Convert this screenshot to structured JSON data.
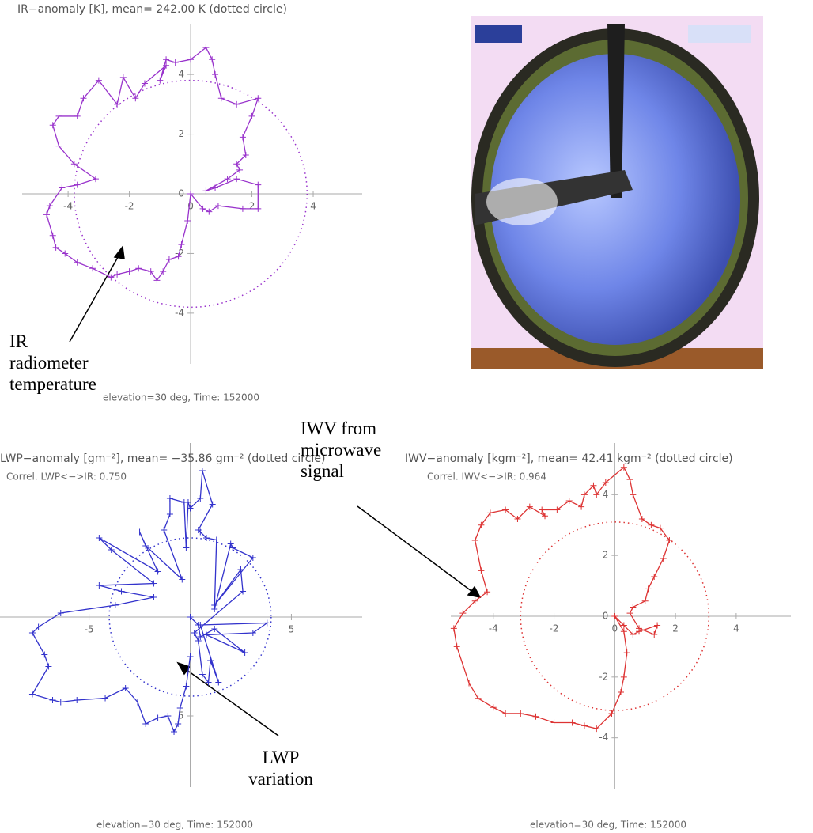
{
  "chart_data": [
    {
      "type": "line",
      "title": "IR−anomaly [K], mean= 242.00 K (dotted circle)",
      "caption": "elevation=30 deg, Time: 152000",
      "annotation": "IR radiometer temperature",
      "color": "#9933cc",
      "circle_radius": 3.8,
      "xlim": [
        -5.5,
        5.6
      ],
      "ylim": [
        -5.7,
        5.7
      ],
      "xticks": [
        -4,
        -2,
        0,
        2,
        4
      ],
      "yticks": [
        -4,
        -2,
        0,
        2,
        4
      ],
      "x": [
        0,
        0.4,
        0.6,
        0.9,
        1.7,
        2.2,
        2.2,
        1.5,
        0.8,
        0.5,
        1.2,
        1.6,
        1.5,
        1.8,
        1.7,
        2.0,
        2.2,
        1.5,
        1.0,
        0.8,
        0.7,
        0.5,
        0,
        -0.5,
        -0.8,
        -1.0,
        -0.8,
        -1.5,
        -1.8,
        -2.2,
        -2.4,
        -3.0,
        -3.5,
        -3.7,
        -4.3,
        -4.5,
        -4.3,
        -3.8,
        -3.1,
        -3.7,
        -4.2,
        -4.6,
        -4.7,
        -4.5,
        -4.4,
        -4.1,
        -3.7,
        -3.2,
        -2.6,
        -2.4,
        -2.0,
        -1.7,
        -1.3,
        -1.1,
        -0.9,
        -0.7,
        -0.4,
        -0.3,
        -0.1,
        0
      ],
      "y": [
        0,
        -0.5,
        -0.6,
        -0.4,
        -0.5,
        -0.5,
        0.3,
        0.5,
        0.2,
        0.1,
        0.5,
        0.8,
        1.0,
        1.3,
        1.9,
        2.6,
        3.2,
        3.0,
        3.2,
        4.0,
        4.5,
        4.9,
        4.5,
        4.4,
        4.5,
        3.8,
        4.3,
        3.7,
        3.2,
        3.9,
        3.0,
        3.8,
        3.2,
        2.6,
        2.6,
        2.3,
        1.6,
        1.0,
        0.5,
        0.3,
        0.2,
        -0.4,
        -0.7,
        -1.4,
        -1.8,
        -2.0,
        -2.3,
        -2.5,
        -2.8,
        -2.7,
        -2.6,
        -2.5,
        -2.6,
        -2.9,
        -2.6,
        -2.2,
        -2.1,
        -1.7,
        -0.9,
        0
      ]
    },
    {
      "type": "line",
      "title": "LWP−anomaly [gm⁻²], mean= −35.86 gm⁻² (dotted circle)",
      "note": "Correl. LWP<−>IR:  0.750",
      "caption": "elevation=30 deg, Time: 152000",
      "annotation": "LWP variation",
      "color": "#3333cc",
      "circle_radius": 4.0,
      "xlim": [
        -9.4,
        8.5
      ],
      "ylim": [
        -8.6,
        8.8
      ],
      "xticks": [
        -5,
        5
      ],
      "yticks": [
        {
          "value": -5,
          "label": "5"
        }
      ],
      "x": [
        0,
        0.4,
        0.5,
        1.2,
        2.7,
        0.8,
        3.1,
        3.8,
        0.5,
        1.4,
        1.0,
        0.9,
        0.6,
        0.4,
        0.2,
        2.6,
        2.5,
        1.2,
        3.1,
        2.1,
        2.0,
        1.2,
        1.3,
        0.8,
        0.5,
        0.4,
        1.1,
        0.6,
        0.5,
        0.0,
        -0.1,
        -0.2,
        -0.3,
        -1.0,
        -1.0,
        -1.3,
        -0.4,
        -2.2,
        -2.5,
        -1.6,
        -4.5,
        -3.9,
        -1.8,
        -4.5,
        -3.4,
        -1.8,
        -3.7,
        -6.4,
        -7.5,
        -7.8,
        -7.2,
        -7.0,
        -7.8,
        -6.8,
        -6.4,
        -5.6,
        -4.2,
        -3.2,
        -2.6,
        -2.2,
        -1.6,
        -1.1,
        -0.8,
        -0.6,
        -0.5,
        -0.2,
        0
      ],
      "y": [
        0,
        -0.4,
        -1.0,
        -0.6,
        -1.8,
        -0.9,
        -0.8,
        -0.3,
        -0.4,
        -3.3,
        -2.2,
        -3.3,
        -2.9,
        -1.2,
        -0.8,
        1.3,
        2.4,
        0.6,
        3.0,
        3.5,
        3.7,
        0.4,
        3.9,
        4.0,
        4.3,
        4.4,
        5.7,
        7.4,
        6.0,
        5.5,
        5.8,
        3.5,
        5.8,
        6.0,
        5.2,
        4.4,
        1.9,
        3.6,
        4.3,
        2.3,
        4.0,
        3.4,
        1.7,
        1.6,
        1.3,
        1.0,
        0.6,
        0.2,
        -0.5,
        -0.8,
        -1.9,
        -2.5,
        -3.9,
        -4.2,
        -4.3,
        -4.2,
        -4.1,
        -3.6,
        -4.3,
        -5.4,
        -5.1,
        -5.0,
        -5.8,
        -5.4,
        -4.6,
        -3.5,
        -2.0
      ]
    },
    {
      "type": "line",
      "title": "IWV−anomaly [kgm⁻²], mean=  42.41 kgm⁻² (dotted circle)",
      "note": "Correl. IWV<−>IR:  0.964",
      "caption": "elevation=30 deg, Time: 152000",
      "annotation": "IWV from microwave signal",
      "color": "#dd3333",
      "circle_radius": 3.1,
      "xlim": [
        -5.4,
        5.8
      ],
      "ylim": [
        -5.7,
        5.7
      ],
      "xticks": [
        -4,
        -2,
        0,
        2,
        4
      ],
      "yticks": [
        -4,
        -2,
        0,
        2,
        4
      ],
      "x": [
        0,
        0.3,
        0.6,
        0.8,
        1.4,
        1.3,
        0.8,
        0.5,
        0.6,
        1.0,
        1.1,
        1.3,
        1.6,
        1.8,
        1.5,
        1.2,
        0.9,
        0.6,
        0.5,
        0.3,
        -0.3,
        -0.6,
        -0.7,
        -1.0,
        -1.1,
        -1.5,
        -1.9,
        -2.4,
        -2.3,
        -2.8,
        -3.2,
        -3.6,
        -4.1,
        -4.4,
        -4.6,
        -4.4,
        -4.2,
        -4.6,
        -5.0,
        -5.3,
        -5.2,
        -5.0,
        -4.8,
        -4.5,
        -4.0,
        -3.6,
        -3.1,
        -2.6,
        -2.0,
        -1.4,
        -1.0,
        -0.6,
        -0.1,
        0.2,
        0.3,
        0.4,
        0.3,
        0
      ],
      "y": [
        0,
        -0.3,
        -0.6,
        -0.5,
        -0.3,
        -0.6,
        -0.4,
        0.1,
        0.3,
        0.5,
        0.9,
        1.3,
        1.9,
        2.5,
        2.9,
        3.0,
        3.2,
        4.0,
        4.5,
        4.9,
        4.4,
        4.0,
        4.3,
        4.0,
        3.6,
        3.8,
        3.5,
        3.5,
        3.3,
        3.6,
        3.2,
        3.5,
        3.4,
        3.0,
        2.5,
        1.5,
        0.8,
        0.5,
        0.1,
        -0.4,
        -1.0,
        -1.6,
        -2.2,
        -2.7,
        -3.0,
        -3.2,
        -3.2,
        -3.3,
        -3.5,
        -3.5,
        -3.6,
        -3.7,
        -3.2,
        -2.5,
        -2.0,
        -1.2,
        -0.5,
        0
      ]
    }
  ]
}
